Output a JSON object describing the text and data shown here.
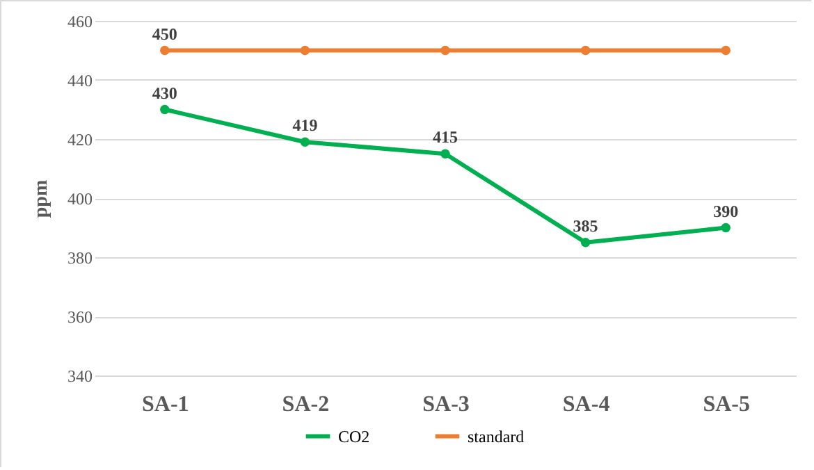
{
  "chart_data": {
    "type": "line",
    "ylabel": "ppm",
    "categories": [
      "SA-1",
      "SA-2",
      "SA-3",
      "SA-4",
      "SA-5"
    ],
    "series": [
      {
        "name": "CO2",
        "color": "#00b050",
        "values": [
          430,
          419,
          415,
          385,
          390
        ],
        "value_labels": [
          "430",
          "419",
          "415",
          "385",
          "390"
        ]
      },
      {
        "name": "standard",
        "color": "#ed7d31",
        "values": [
          450,
          450,
          450,
          450,
          450
        ],
        "value_labels": [
          "450",
          null,
          null,
          null,
          null
        ]
      }
    ],
    "ylim": [
      340,
      460
    ],
    "yticks": [
      340,
      360,
      380,
      400,
      420,
      440,
      460
    ],
    "grid": "y",
    "legend": "bottom",
    "marker": "circle",
    "line_style": "solid"
  }
}
